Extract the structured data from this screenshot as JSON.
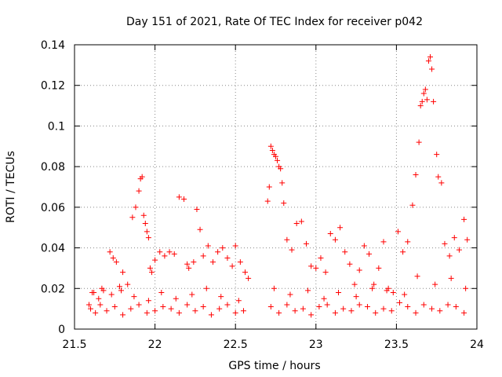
{
  "chart_data": {
    "type": "scatter",
    "title": "Day 151 of 2021, Rate Of TEC Index for receiver p042",
    "xlabel": "GPS time / hours",
    "ylabel": "ROTI / TECUs",
    "xlim": [
      21.5,
      24
    ],
    "ylim": [
      0,
      0.14
    ],
    "grid": true,
    "marker": "+",
    "color": "#ff0000",
    "xticks": [
      21.5,
      22,
      22.5,
      23,
      23.5,
      24
    ],
    "xtick_labels": [
      "21.5",
      "22",
      "22.5",
      "23",
      "23.5",
      "24"
    ],
    "yticks": [
      0,
      0.02,
      0.04,
      0.06,
      0.08,
      0.1,
      0.12,
      0.14
    ],
    "ytick_labels": [
      "0",
      "0.02",
      "0.04",
      "0.06",
      "0.08",
      "0.1",
      "0.12",
      "0.14"
    ],
    "series": [
      {
        "name": "ROTI",
        "x": [
          21.59,
          21.62,
          21.65,
          21.68,
          21.72,
          21.74,
          21.76,
          21.78,
          21.8,
          21.83,
          21.86,
          21.88,
          21.9,
          21.91,
          21.92,
          21.93,
          21.94,
          21.95,
          21.96,
          21.97,
          21.98,
          22.0,
          22.03,
          22.06,
          22.09,
          22.12,
          22.15,
          22.18,
          22.2,
          22.21,
          22.24,
          22.26,
          22.28,
          22.3,
          22.33,
          22.36,
          22.39,
          22.42,
          22.45,
          22.48,
          22.5,
          22.53,
          22.56,
          22.58,
          22.7,
          22.71,
          22.72,
          22.73,
          22.74,
          22.75,
          22.76,
          22.77,
          22.78,
          22.79,
          22.8,
          22.82,
          22.85,
          22.88,
          22.91,
          22.94,
          22.97,
          23.0,
          23.03,
          23.06,
          23.09,
          23.12,
          23.15,
          23.18,
          23.21,
          23.24,
          23.27,
          23.3,
          23.33,
          23.36,
          23.39,
          23.42,
          23.45,
          23.48,
          23.51,
          23.54,
          23.57,
          23.6,
          23.62,
          23.64,
          23.65,
          23.66,
          23.67,
          23.68,
          23.69,
          23.7,
          23.71,
          23.72,
          23.73,
          23.75,
          23.76,
          23.78,
          23.8,
          23.83,
          23.86,
          23.89,
          23.92,
          23.94,
          21.6,
          21.63,
          21.66,
          21.7,
          21.75,
          21.8,
          21.85,
          21.9,
          21.95,
          22.0,
          22.05,
          22.1,
          22.15,
          22.2,
          22.25,
          22.3,
          22.35,
          22.4,
          22.45,
          22.5,
          22.55,
          22.72,
          22.77,
          22.82,
          22.87,
          22.92,
          22.97,
          23.02,
          23.07,
          23.12,
          23.17,
          23.22,
          23.27,
          23.32,
          23.37,
          23.42,
          23.47,
          23.52,
          23.57,
          23.62,
          23.67,
          23.72,
          23.77,
          23.82,
          23.87,
          23.92,
          21.61,
          21.67,
          21.73,
          21.79,
          21.87,
          21.96,
          22.04,
          22.13,
          22.23,
          22.32,
          22.41,
          22.52,
          22.74,
          22.84,
          22.95,
          23.05,
          23.14,
          23.25,
          23.35,
          23.44,
          23.55,
          23.63,
          23.74,
          23.84,
          23.93
        ],
        "y": [
          0.012,
          0.018,
          0.015,
          0.019,
          0.038,
          0.035,
          0.033,
          0.021,
          0.028,
          0.022,
          0.055,
          0.06,
          0.068,
          0.074,
          0.075,
          0.056,
          0.052,
          0.048,
          0.045,
          0.03,
          0.028,
          0.034,
          0.038,
          0.036,
          0.038,
          0.037,
          0.065,
          0.064,
          0.032,
          0.03,
          0.033,
          0.059,
          0.049,
          0.036,
          0.041,
          0.033,
          0.038,
          0.04,
          0.035,
          0.031,
          0.041,
          0.033,
          0.028,
          0.025,
          0.063,
          0.07,
          0.09,
          0.088,
          0.086,
          0.085,
          0.083,
          0.08,
          0.079,
          0.072,
          0.062,
          0.044,
          0.039,
          0.052,
          0.053,
          0.042,
          0.031,
          0.03,
          0.035,
          0.028,
          0.047,
          0.044,
          0.05,
          0.038,
          0.032,
          0.022,
          0.029,
          0.041,
          0.037,
          0.022,
          0.03,
          0.043,
          0.02,
          0.018,
          0.048,
          0.038,
          0.043,
          0.061,
          0.076,
          0.092,
          0.11,
          0.112,
          0.116,
          0.118,
          0.113,
          0.132,
          0.134,
          0.128,
          0.112,
          0.086,
          0.075,
          0.072,
          0.042,
          0.036,
          0.045,
          0.039,
          0.054,
          0.044,
          0.01,
          0.008,
          0.012,
          0.009,
          0.011,
          0.007,
          0.01,
          0.012,
          0.008,
          0.009,
          0.011,
          0.01,
          0.008,
          0.012,
          0.009,
          0.011,
          0.007,
          0.01,
          0.012,
          0.008,
          0.009,
          0.011,
          0.008,
          0.012,
          0.009,
          0.01,
          0.007,
          0.011,
          0.012,
          0.008,
          0.01,
          0.009,
          0.012,
          0.011,
          0.008,
          0.01,
          0.009,
          0.013,
          0.011,
          0.008,
          0.012,
          0.01,
          0.009,
          0.012,
          0.011,
          0.008,
          0.018,
          0.02,
          0.017,
          0.019,
          0.016,
          0.014,
          0.018,
          0.015,
          0.017,
          0.02,
          0.016,
          0.014,
          0.02,
          0.017,
          0.019,
          0.015,
          0.018,
          0.016,
          0.02,
          0.019,
          0.017,
          0.026,
          0.022,
          0.025,
          0.02
        ]
      }
    ]
  }
}
